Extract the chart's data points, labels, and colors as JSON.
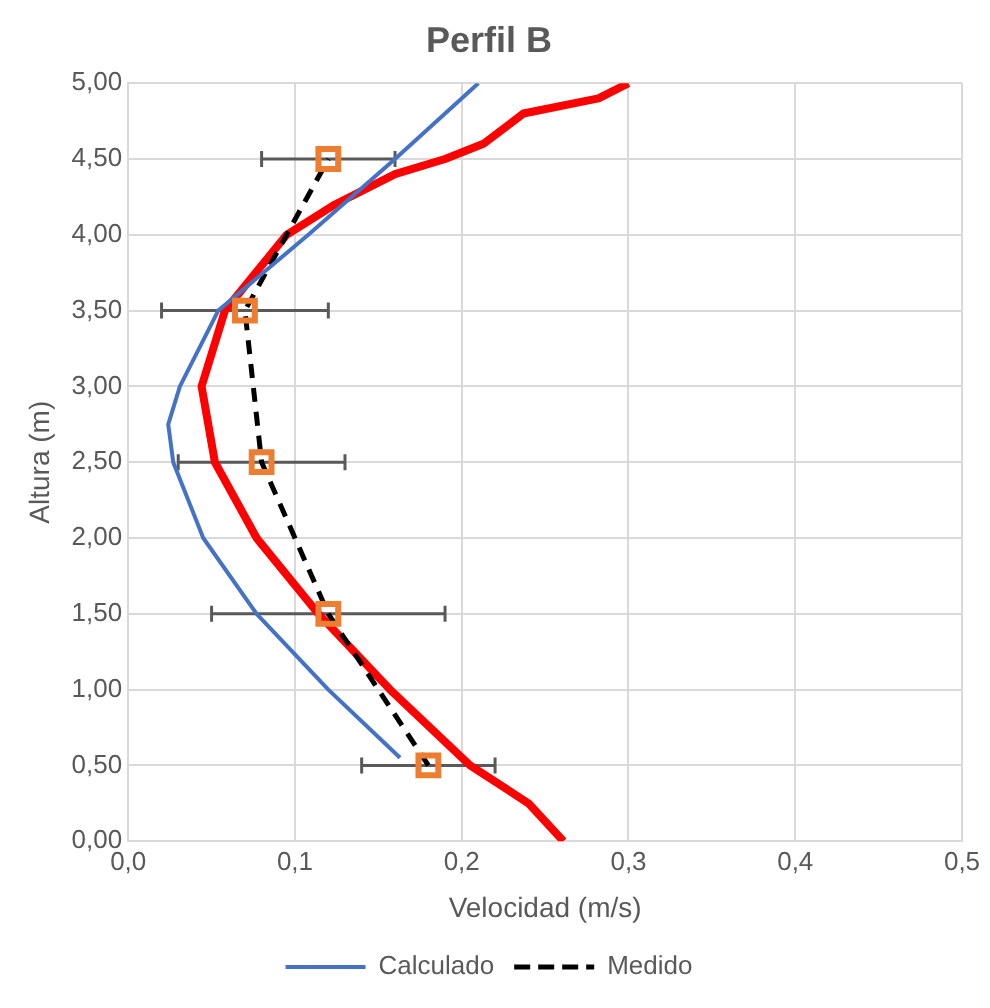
{
  "chart_data": {
    "type": "line",
    "title": "Perfil B",
    "xlabel": "Velocidad (m/s)",
    "ylabel": "Altura (m)",
    "xlim": [
      0,
      0.5
    ],
    "xticks": [
      {
        "value": 0,
        "label": "0,0"
      },
      {
        "value": 0.1,
        "label": "0,1"
      },
      {
        "value": 0.2,
        "label": "0,2"
      },
      {
        "value": 0.3,
        "label": "0,3"
      },
      {
        "value": 0.4,
        "label": "0,4"
      },
      {
        "value": 0.5,
        "label": "0,5"
      }
    ],
    "ylim": [
      0,
      5
    ],
    "yticks": [
      {
        "value": 0,
        "label": "0,00"
      },
      {
        "value": 0.5,
        "label": "0,50"
      },
      {
        "value": 1,
        "label": "1,00"
      },
      {
        "value": 1.5,
        "label": "1,50"
      },
      {
        "value": 2,
        "label": "2,00"
      },
      {
        "value": 2.5,
        "label": "2,50"
      },
      {
        "value": 3,
        "label": "3,00"
      },
      {
        "value": 3.5,
        "label": "3,50"
      },
      {
        "value": 4,
        "label": "4,00"
      },
      {
        "value": 4.5,
        "label": "4,50"
      },
      {
        "value": 5,
        "label": "5,00"
      }
    ],
    "grid": true,
    "legend": "bottom",
    "series": [
      {
        "name": "Calculado",
        "color": "#4472c4",
        "line_style": "solid",
        "marker": "none",
        "x": [
          0.163,
          0.12,
          0.077,
          0.045,
          0.027,
          0.024,
          0.031,
          0.054,
          0.108,
          0.16,
          0.21
        ],
        "values": [
          0.55,
          1,
          1.5,
          2,
          2.5,
          2.75,
          3,
          3.5,
          4,
          4.5,
          5
        ]
      },
      {
        "name": "Medido",
        "color": "#000000",
        "line_style": "dashed",
        "marker": "none",
        "x": [
          0.18,
          0.12,
          0.08,
          0.07,
          0.12
        ],
        "values": [
          0.5,
          1.5,
          2.5,
          3.5,
          4.5
        ]
      },
      {
        "color": "#ff0000",
        "line_style": "solid",
        "marker": "none",
        "x": [
          0.261,
          0.24,
          0.205,
          0.157,
          0.114,
          0.077,
          0.052,
          0.044,
          0.058,
          0.095,
          0.124,
          0.16,
          0.19,
          0.213,
          0.237,
          0.282,
          0.3
        ],
        "values": [
          0,
          0.25,
          0.5,
          1,
          1.5,
          2,
          2.5,
          3,
          3.5,
          4,
          4.2,
          4.4,
          4.5,
          4.6,
          4.8,
          4.9,
          5
        ]
      },
      {
        "type": "scatter",
        "color": "#ed7d31",
        "marker": "square",
        "x": [
          0.18,
          0.12,
          0.08,
          0.07,
          0.12
        ],
        "values": [
          0.5,
          1.5,
          2.5,
          3.5,
          4.5
        ],
        "xerrors": [
          [
            0.14,
            0.22
          ],
          [
            0.05,
            0.19
          ],
          [
            0.03,
            0.13
          ],
          [
            0.02,
            0.12
          ],
          [
            0.08,
            0.16
          ]
        ]
      }
    ]
  }
}
